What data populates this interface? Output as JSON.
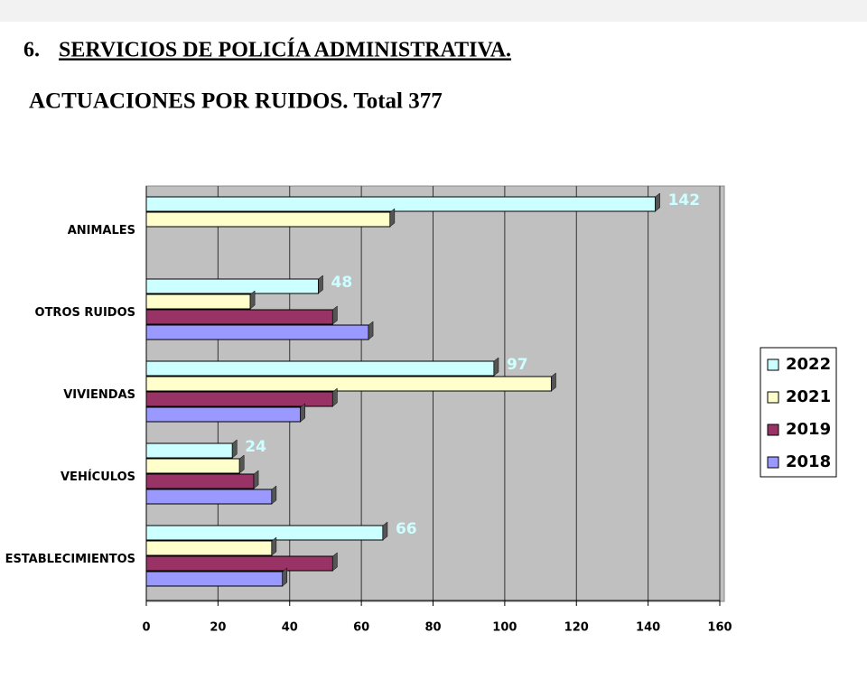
{
  "heading": {
    "number": "6.",
    "text": "SERVICIOS DE POLICÍA ADMINISTRATIVA."
  },
  "chart_data": {
    "type": "bar",
    "orientation": "horizontal",
    "title": "ACTUACIONES POR RUIDOS. Total 377",
    "categories": [
      "ANIMALES",
      "OTROS RUIDOS",
      "VIVIENDAS",
      "VEHÍCULOS",
      "ESTABLECIMIENTOS"
    ],
    "series": [
      {
        "name": "2022",
        "color": "#ccffff",
        "values": [
          142,
          48,
          97,
          24,
          66
        ],
        "show_labels": true
      },
      {
        "name": "2021",
        "color": "#ffffcc",
        "values": [
          68,
          29,
          113,
          26,
          35
        ]
      },
      {
        "name": "2019",
        "color": "#993366",
        "values": [
          0,
          52,
          52,
          30,
          52
        ]
      },
      {
        "name": "2018",
        "color": "#9999ff",
        "values": [
          0,
          62,
          43,
          35,
          38
        ]
      }
    ],
    "xlim": [
      0,
      160
    ],
    "xticks": [
      0,
      20,
      40,
      60,
      80,
      100,
      120,
      140,
      160
    ],
    "grid": true,
    "legend": "right"
  }
}
